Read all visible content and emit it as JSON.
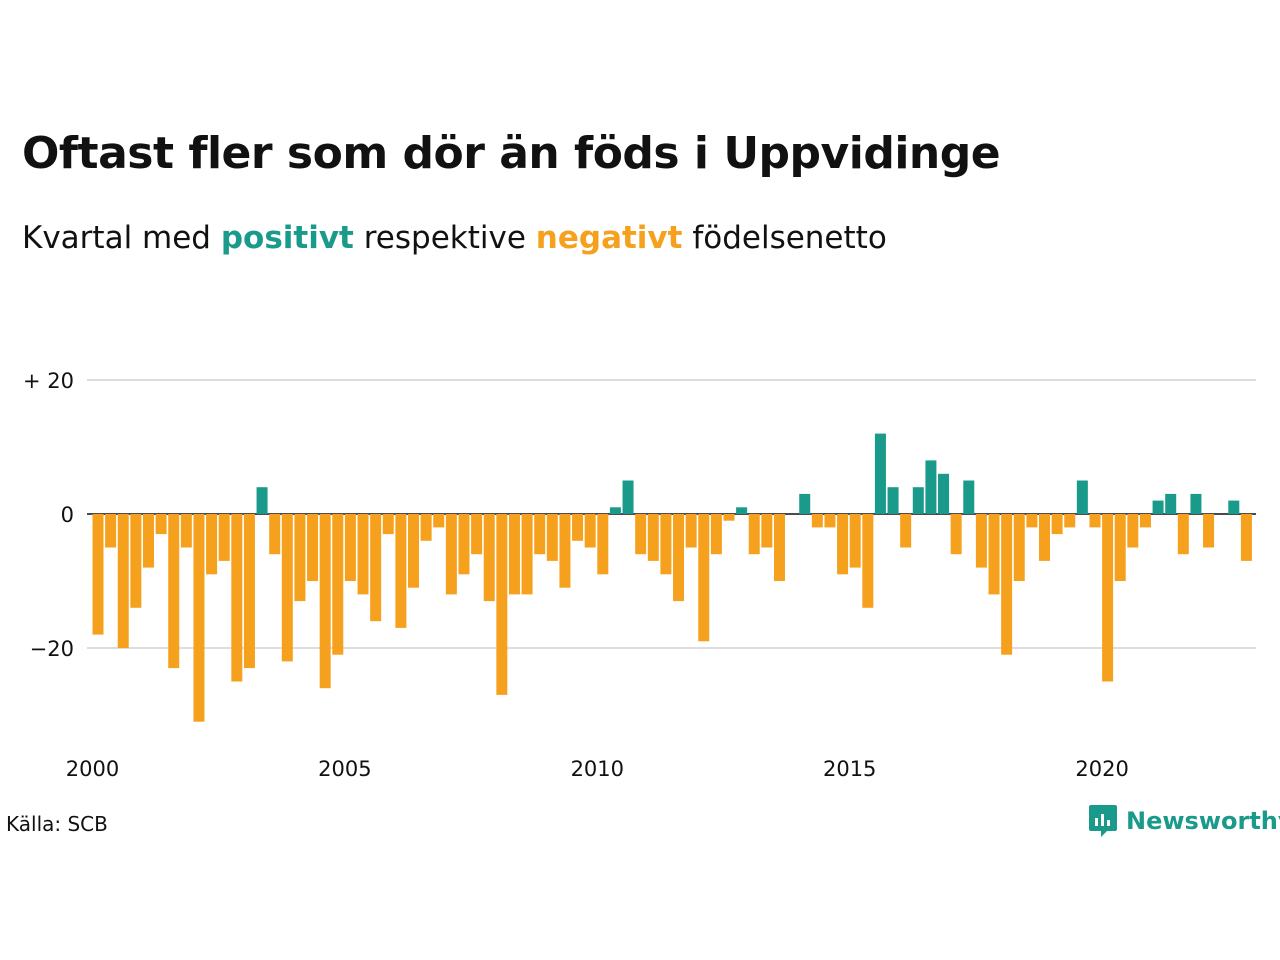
{
  "header": {
    "title": "Oftast fler som dör än föds i Uppvidinge",
    "subtitle_part1": "Kvartal med ",
    "subtitle_positive": "positivt",
    "subtitle_part2": " respektive ",
    "subtitle_negative": "negativt",
    "subtitle_part3": " födelsenetto"
  },
  "footer": {
    "source": "Källa: SCB",
    "brand": "Newsworthy"
  },
  "colors": {
    "positive": "#1a9a8a",
    "negative": "#f6a11d",
    "grid": "#dddddd",
    "zero_line": "#111111",
    "text": "#111111"
  },
  "chart_data": {
    "type": "bar",
    "x_start": 2000,
    "x_interval": "quarter",
    "values": [
      -18,
      -5,
      -20,
      -14,
      -8,
      -3,
      -23,
      -5,
      -31,
      -9,
      -7,
      -25,
      -23,
      4,
      -6,
      -22,
      -13,
      -10,
      -26,
      -21,
      -10,
      -12,
      -16,
      -3,
      -17,
      -11,
      -4,
      -2,
      -12,
      -9,
      -6,
      -13,
      -27,
      -12,
      -12,
      -6,
      -7,
      -11,
      -4,
      -5,
      -9,
      1,
      5,
      -6,
      -7,
      -9,
      -13,
      -5,
      -19,
      -6,
      -1,
      1,
      -6,
      -5,
      -10,
      0,
      3,
      -2,
      -2,
      -9,
      -8,
      -14,
      12,
      4,
      -5,
      4,
      8,
      6,
      -6,
      5,
      -8,
      -12,
      -21,
      -10,
      -2,
      -7,
      -3,
      -2,
      5,
      -2,
      -25,
      -10,
      -5,
      -2,
      2,
      3,
      -6,
      3,
      -5,
      0,
      2,
      -7
    ],
    "y_ticks": [
      20,
      0,
      -20
    ],
    "y_tick_labels": [
      "+ 20",
      "0",
      "−20"
    ],
    "x_ticks": [
      2000,
      2005,
      2010,
      2015,
      2020
    ],
    "x_tick_labels": [
      "2000",
      "2005",
      "2010",
      "2015",
      "2020"
    ],
    "ylim": [
      -33,
      20
    ],
    "grid": true
  }
}
